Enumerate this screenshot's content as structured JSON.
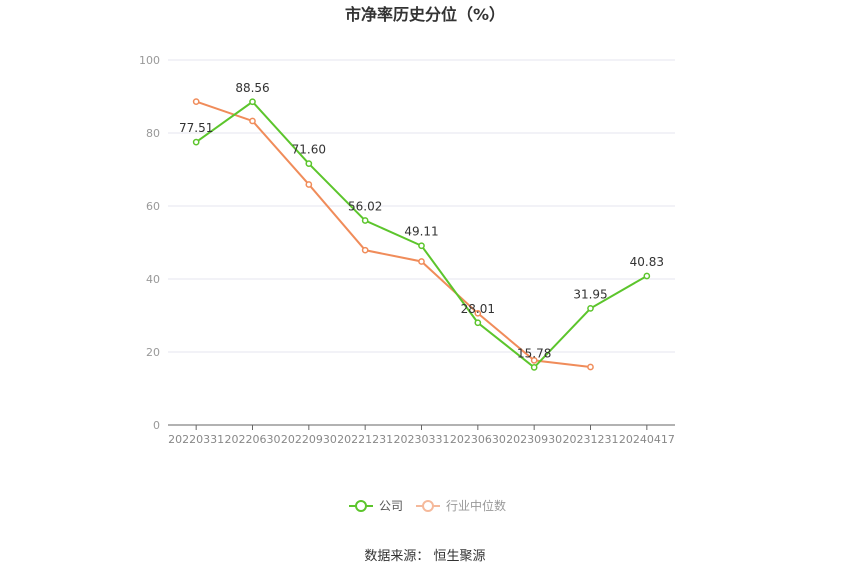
{
  "chart_data": {
    "type": "line",
    "title": "市净率历史分位（%）",
    "categories": [
      "20220331",
      "20220630",
      "20220930",
      "20221231",
      "20230331",
      "20230630",
      "20230930",
      "20231231",
      "20240417"
    ],
    "ylim": [
      0,
      100
    ],
    "yticks": [
      0,
      20,
      40,
      60,
      80,
      100
    ],
    "grid": true,
    "legend_position": "bottom",
    "series": [
      {
        "name": "公司",
        "color": "#5cc52c",
        "values": [
          77.51,
          88.56,
          71.6,
          56.02,
          49.11,
          28.01,
          15.78,
          31.95,
          40.83
        ],
        "labels": [
          "77.51",
          "88.56",
          "71.60",
          "56.02",
          "49.11",
          "28.01",
          "15.78",
          "31.95",
          "40.83"
        ]
      },
      {
        "name": "行业中位数",
        "color": "#f08c5a",
        "values": [
          88.6,
          83.3,
          65.9,
          47.9,
          44.8,
          30.6,
          17.7,
          15.9,
          null
        ]
      }
    ]
  },
  "source": "数据来源：  恒生聚源"
}
